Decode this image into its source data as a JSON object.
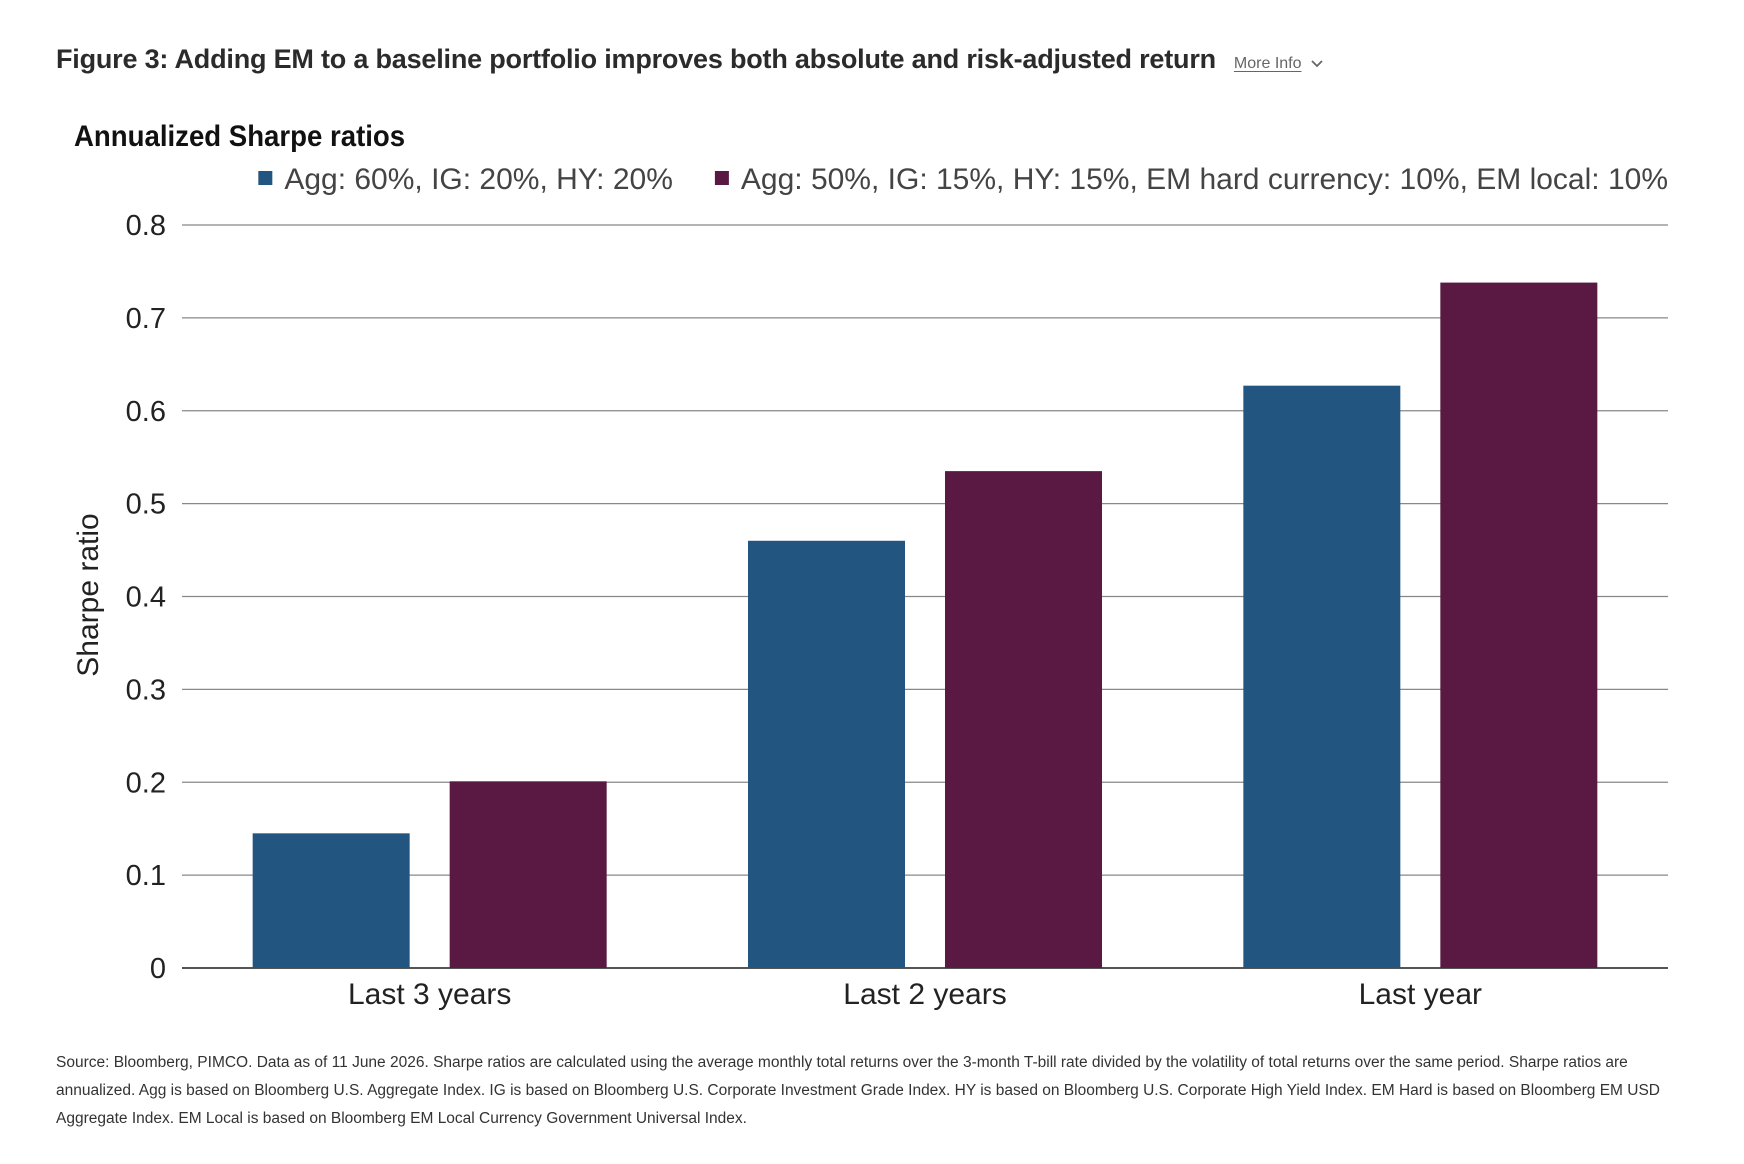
{
  "header": {
    "figure_title": "Figure 3: Adding EM to a baseline portfolio improves both absolute and risk-adjusted return",
    "more_info_label": "More Info",
    "more_info_icon": "chevron-down-icon"
  },
  "chart_data": {
    "type": "bar",
    "title": "Annualized Sharpe ratios",
    "xlabel": "",
    "ylabel": "Sharpe ratio",
    "ylim": [
      0,
      0.8
    ],
    "yticks": [
      "0",
      "0.1",
      "0.2",
      "0.3",
      "0.4",
      "0.5",
      "0.6",
      "0.7",
      "0.8"
    ],
    "categories": [
      "Last 3 years",
      "Last 2 years",
      "Last year"
    ],
    "series": [
      {
        "name": "Agg: 60%, IG: 20%, HY: 20%",
        "values": [
          0.145,
          0.46,
          0.627
        ],
        "color": "#22557f"
      },
      {
        "name": "Agg: 50%, IG: 15%, HY: 15%, EM hard currency: 10%, EM local: 10%",
        "values": [
          0.201,
          0.535,
          0.738
        ],
        "color": "#5a1942"
      }
    ],
    "grid": true,
    "legend_position": "top-right"
  },
  "footer": {
    "source_note": "Source: Bloomberg, PIMCO. Data as of 11 June 2026. Sharpe ratios are calculated using the average monthly total returns over the 3-month T-bill rate divided by the volatility of total returns over the same period. Sharpe ratios are annualized. Agg is based on Bloomberg U.S. Aggregate Index. IG is based on Bloomberg U.S. Corporate Investment Grade Index. HY is based on Bloomberg U.S. Corporate High Yield Index. EM Hard is based on Bloomberg EM USD Aggregate Index. EM Local is based on Bloomberg EM Local Currency Government Universal Index."
  }
}
